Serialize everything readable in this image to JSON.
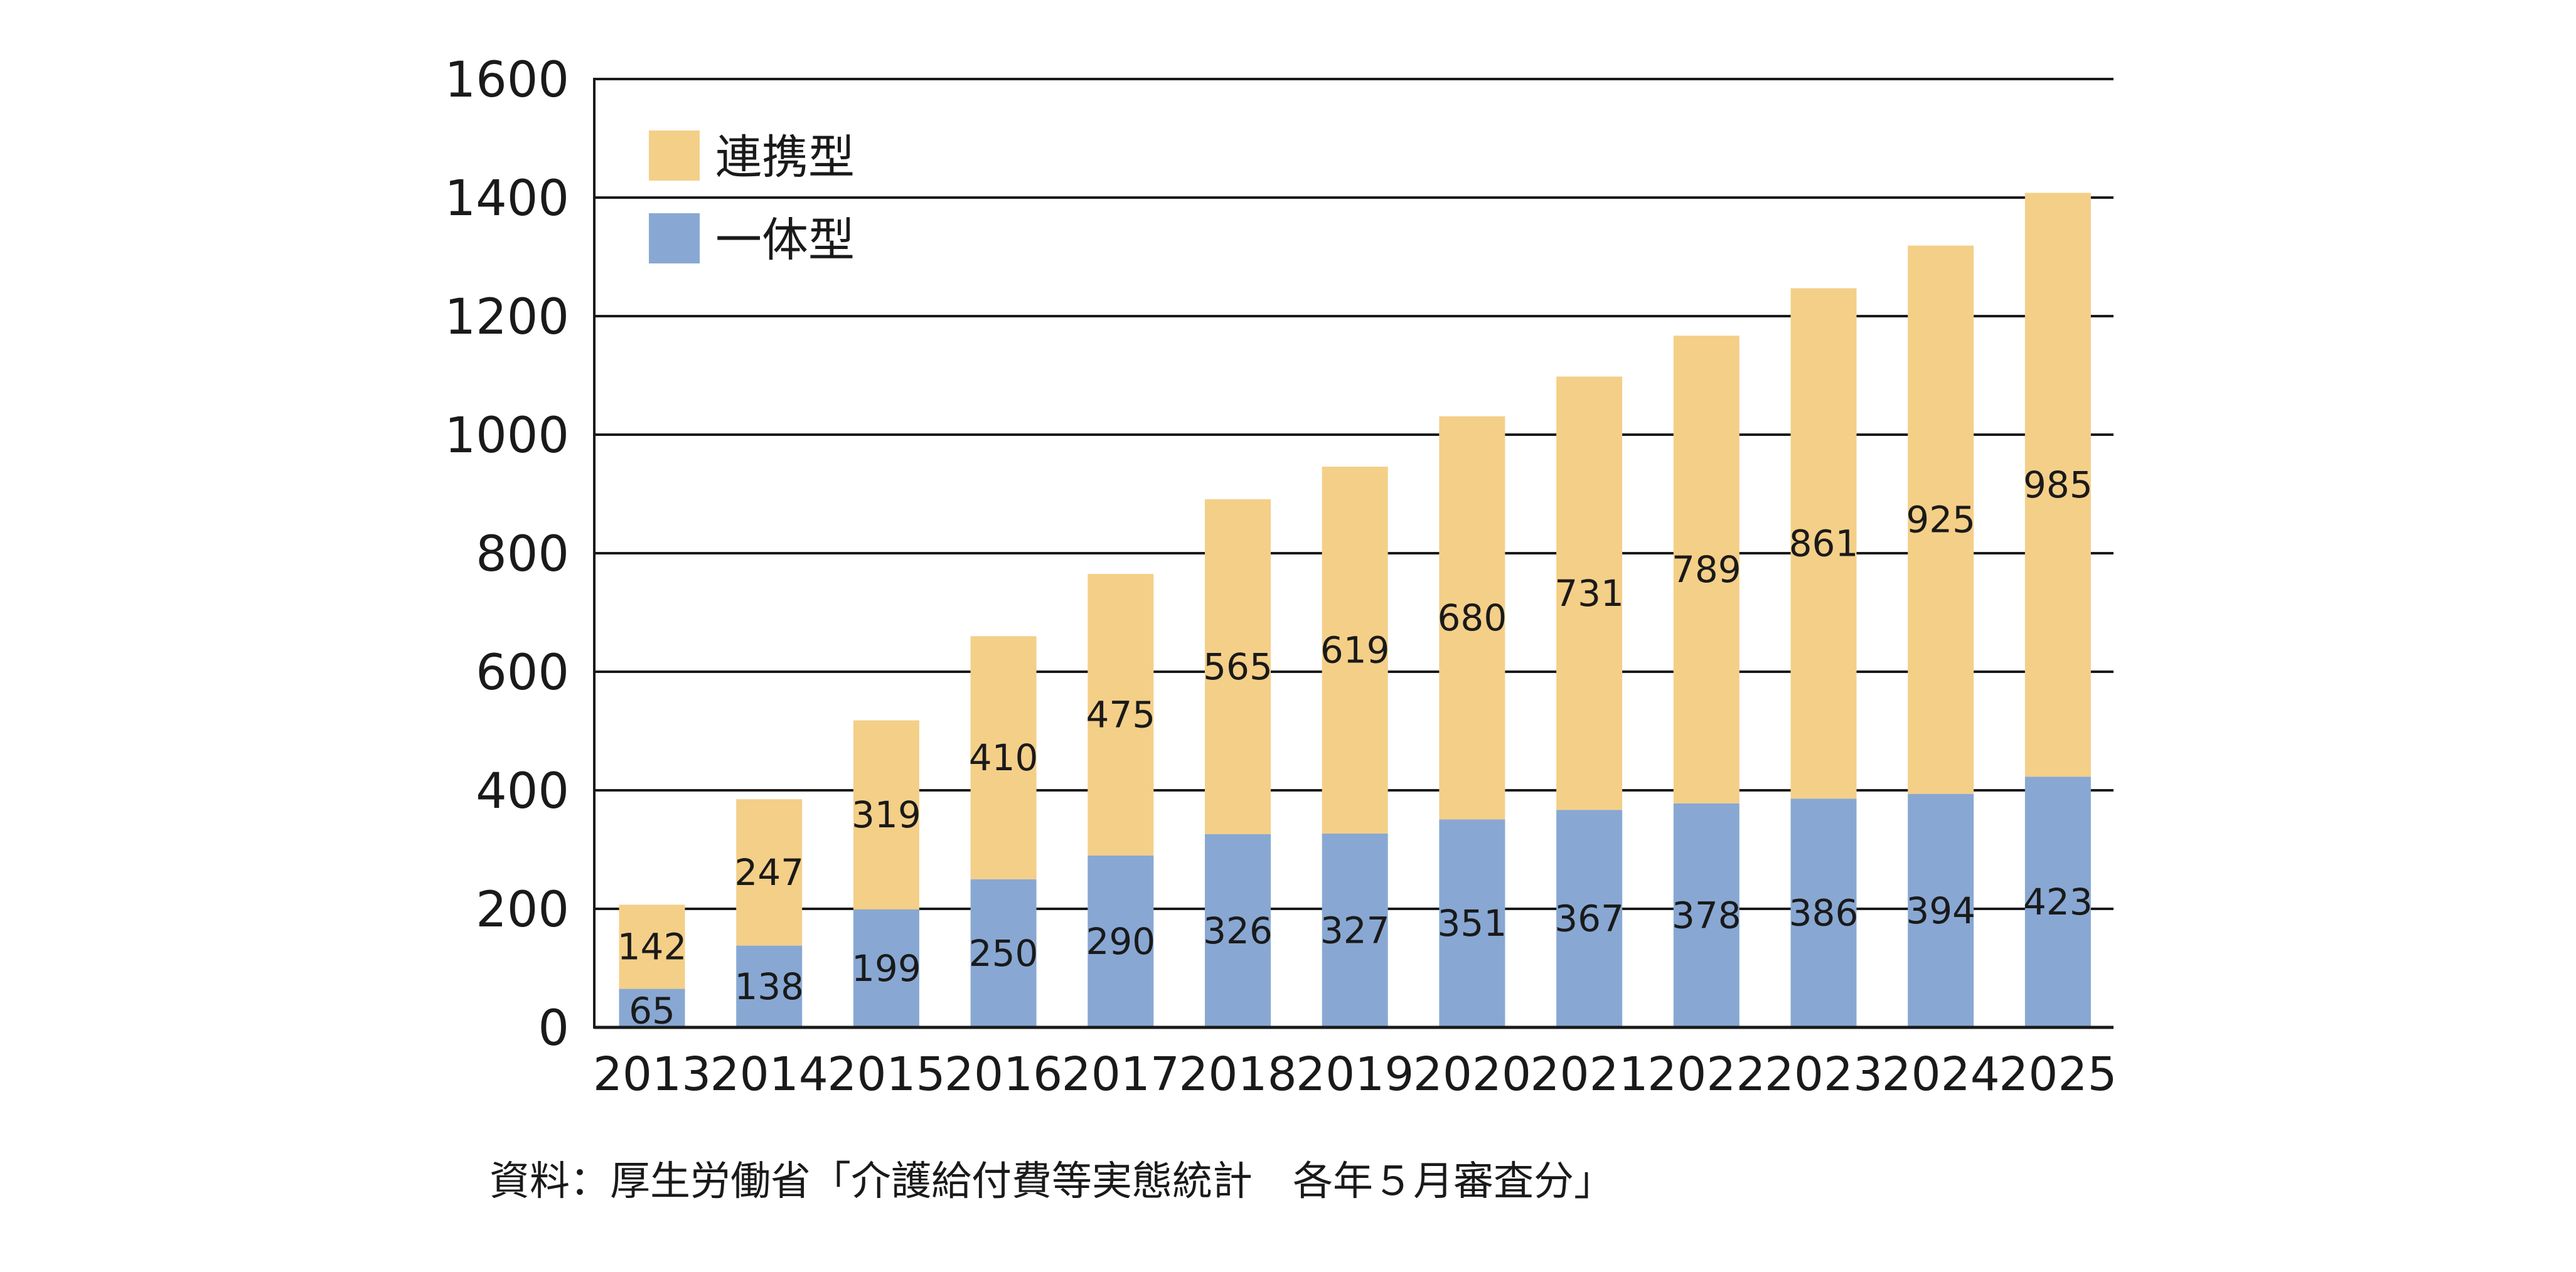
{
  "chart_data": {
    "type": "bar",
    "stacked": true,
    "title": "",
    "xlabel": "",
    "ylabel": "",
    "categories": [
      "2013",
      "2014",
      "2015",
      "2016",
      "2017",
      "2018",
      "2019",
      "2020",
      "2021",
      "2022",
      "2023",
      "2024",
      "2025"
    ],
    "series": [
      {
        "name": "一体型",
        "color": "#88a8d3",
        "values": [
          65,
          138,
          199,
          250,
          290,
          326,
          327,
          351,
          367,
          378,
          386,
          394,
          423
        ]
      },
      {
        "name": "連携型",
        "color": "#f4cf88",
        "values": [
          142,
          247,
          319,
          410,
          475,
          565,
          619,
          680,
          731,
          789,
          861,
          925,
          985
        ]
      }
    ],
    "ylim": [
      0,
      1600
    ],
    "yticks": [
      0,
      200,
      400,
      600,
      800,
      1000,
      1200,
      1400,
      1600
    ],
    "grid": true,
    "legend": {
      "placement": "top-left",
      "entries": [
        "連携型",
        "一体型"
      ]
    },
    "data_labels": true
  },
  "source_note": "資料：厚生労働省「介護給付費等実態統計　各年５月審査分」"
}
